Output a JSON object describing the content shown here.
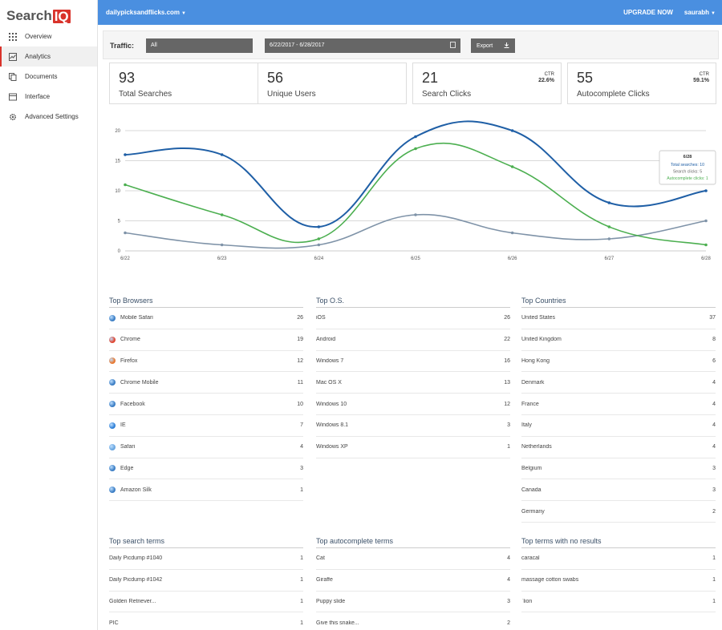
{
  "brand": {
    "name_a": "Search",
    "name_b": "IQ"
  },
  "sidebar": {
    "items": [
      {
        "label": "Overview",
        "icon": "grid-icon"
      },
      {
        "label": "Analytics",
        "icon": "chart-icon"
      },
      {
        "label": "Documents",
        "icon": "documents-icon"
      },
      {
        "label": "Interface",
        "icon": "window-icon"
      },
      {
        "label": "Advanced Settings",
        "icon": "gear-icon"
      }
    ]
  },
  "topbar": {
    "site": "dailypicksandflicks.com",
    "upgrade": "UPGRADE NOW",
    "user": "saurabh"
  },
  "filters": {
    "traffic_label": "Traffic:",
    "traffic_value": "All",
    "date_range": "6/22/2017 - 6/28/2017",
    "export_label": "Export"
  },
  "stats": [
    {
      "value": "93",
      "label": "Total Searches"
    },
    {
      "value": "56",
      "label": "Unique Users"
    },
    {
      "value": "21",
      "label": "Search Clicks",
      "ctr_label": "CTR",
      "ctr": "22.6%"
    },
    {
      "value": "55",
      "label": "Autocomplete Clicks",
      "ctr_label": "CTR",
      "ctr": "59.1%"
    }
  ],
  "chart_data": {
    "type": "line",
    "x": [
      "6/22",
      "6/23",
      "6/24",
      "6/25",
      "6/26",
      "6/27",
      "6/28"
    ],
    "ylim": [
      0,
      20
    ],
    "yticks": [
      0,
      5,
      10,
      15,
      20
    ],
    "grid": true,
    "series": [
      {
        "name": "Total searches",
        "color": "#1f5fa6",
        "values": [
          16,
          16,
          4,
          19,
          20,
          8,
          10
        ]
      },
      {
        "name": "Search clicks",
        "color": "#7f93a8",
        "values": [
          3,
          1,
          1,
          6,
          3,
          2,
          5
        ]
      },
      {
        "name": "Autocomplete clicks",
        "color": "#4caf50",
        "values": [
          11,
          6,
          2,
          17,
          14,
          4,
          1
        ]
      }
    ],
    "tooltip": {
      "title": "6/28",
      "lines": [
        "Total searches: 10",
        "Search clicks: 5",
        "Autocomplete clicks: 1"
      ]
    }
  },
  "tables": {
    "browsers": {
      "title": "Top Browsers",
      "rows": [
        {
          "name": "Mobile Safari",
          "count": "26",
          "icon": "globe-icon"
        },
        {
          "name": "Chrome",
          "count": "19",
          "icon": "chrome-icon"
        },
        {
          "name": "Firefox",
          "count": "12",
          "icon": "firefox-icon"
        },
        {
          "name": "Chrome Mobile",
          "count": "11",
          "icon": "globe-icon"
        },
        {
          "name": "Facebook",
          "count": "10",
          "icon": "globe-icon"
        },
        {
          "name": "IE",
          "count": "7",
          "icon": "ie-icon"
        },
        {
          "name": "Safari",
          "count": "4",
          "icon": "safari-icon"
        },
        {
          "name": "Edge",
          "count": "3",
          "icon": "globe-icon"
        },
        {
          "name": "Amazon Silk",
          "count": "1",
          "icon": "globe-icon"
        }
      ]
    },
    "os": {
      "title": "Top O.S.",
      "rows": [
        {
          "name": "iOS",
          "count": "26"
        },
        {
          "name": "Android",
          "count": "22"
        },
        {
          "name": "Windows 7",
          "count": "16"
        },
        {
          "name": "Mac OS X",
          "count": "13"
        },
        {
          "name": "Windows 10",
          "count": "12"
        },
        {
          "name": "Windows 8.1",
          "count": "3"
        },
        {
          "name": "Windows XP",
          "count": "1"
        }
      ]
    },
    "countries": {
      "title": "Top Countries",
      "rows": [
        {
          "name": "United States",
          "count": "37"
        },
        {
          "name": "United Kingdom",
          "count": "8"
        },
        {
          "name": "Hong Kong",
          "count": "6"
        },
        {
          "name": "Denmark",
          "count": "4"
        },
        {
          "name": "France",
          "count": "4"
        },
        {
          "name": "Italy",
          "count": "4"
        },
        {
          "name": "Netherlands",
          "count": "4"
        },
        {
          "name": "Belgium",
          "count": "3"
        },
        {
          "name": "Canada",
          "count": "3"
        },
        {
          "name": "Germany",
          "count": "2"
        }
      ]
    },
    "search_terms": {
      "title": "Top search terms",
      "rows": [
        {
          "name": "Daily Picdump #1040",
          "count": "1"
        },
        {
          "name": "Daily Picdump #1042",
          "count": "1"
        },
        {
          "name": "Golden Retriever...",
          "count": "1"
        },
        {
          "name": "PIC",
          "count": "1"
        }
      ]
    },
    "autocomplete_terms": {
      "title": "Top autocomplete terms",
      "rows": [
        {
          "name": "Cat",
          "count": "4"
        },
        {
          "name": "Giraffe",
          "count": "4"
        },
        {
          "name": "Puppy slide",
          "count": "3"
        },
        {
          "name": "Give this snake...",
          "count": "2"
        }
      ]
    },
    "no_results": {
      "title": "Top terms with no results",
      "rows": [
        {
          "name": "caracal",
          "count": "1"
        },
        {
          "name": "massage cotton swabs",
          "count": "1"
        },
        {
          "name": "`lion",
          "count": "1"
        }
      ]
    }
  }
}
